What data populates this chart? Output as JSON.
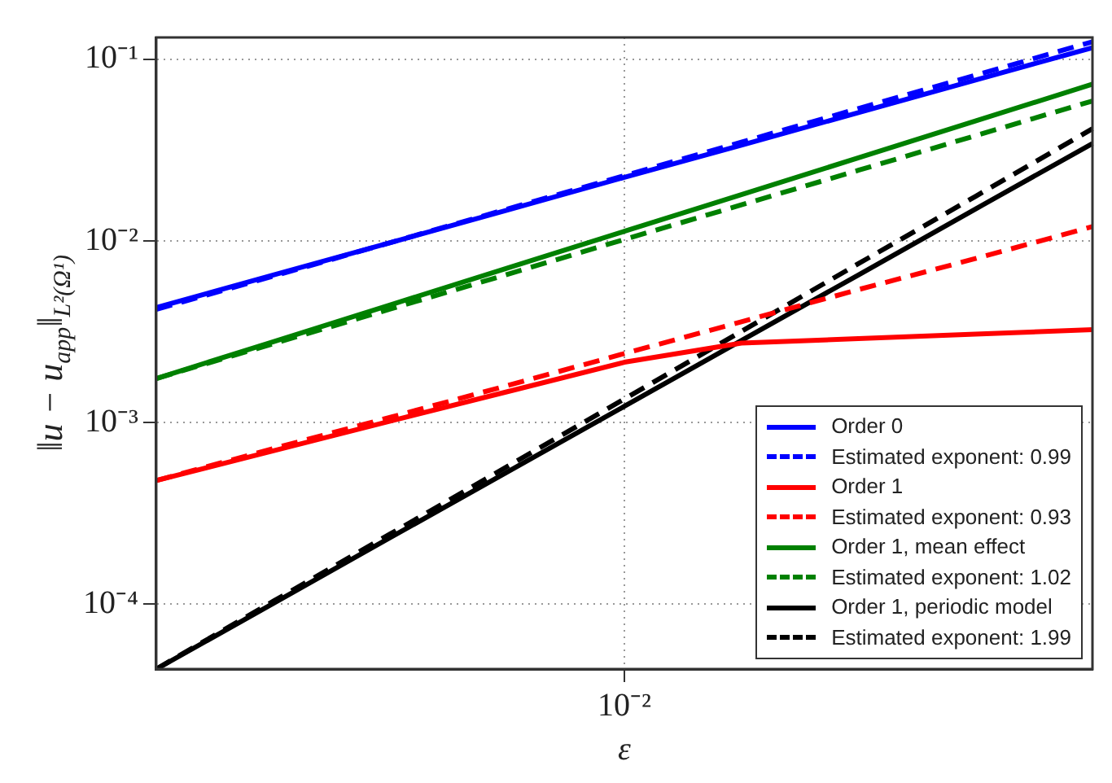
{
  "chart_data": {
    "type": "line",
    "xlabel": "ε",
    "ylabel": "‖u − u$_{app}$‖$_{L²(Ω¹)}$",
    "log": "y",
    "grid": true,
    "legend": "bottom right",
    "marker": "none",
    "categories": [
      null,
      null,
      null,
      null,
      "10⁻²",
      null,
      null,
      null,
      null
    ],
    "ylim": [
      4.4e-05,
      0.132
    ],
    "yticks": [
      {
        "value": 0.0001,
        "label": "10⁻⁴"
      },
      {
        "value": 0.001,
        "label": "10⁻³"
      },
      {
        "value": 0.01,
        "label": "10⁻²"
      },
      {
        "value": 0.1,
        "label": "10⁻¹"
      }
    ],
    "series": [
      {
        "name": "Order 0",
        "color": "#0000ff",
        "line_style": "solid",
        "values": [
          0.0043,
          0.0065,
          0.0098,
          0.0148,
          0.0224,
          0.0337,
          0.0509,
          0.0769,
          0.116
        ]
      },
      {
        "name": "Estimated exponent: 0.99",
        "color": "#0000ff",
        "line_style": "dashed",
        "values": [
          0.0042,
          0.0064,
          0.0098,
          0.015,
          0.0229,
          0.035,
          0.0536,
          0.0818,
          0.125
        ]
      },
      {
        "name": "Order 1",
        "color": "#ff0000",
        "line_style": "solid",
        "values": [
          0.00048,
          0.0007,
          0.00102,
          0.00148,
          0.00215,
          0.00274,
          0.0029,
          0.00307,
          0.00325
        ]
      },
      {
        "name": "Estimated exponent: 0.93",
        "color": "#ff0000",
        "line_style": "dashed",
        "values": [
          0.00048,
          0.00072,
          0.00107,
          0.0016,
          0.0024,
          0.00359,
          0.0054,
          0.008,
          0.012
        ]
      },
      {
        "name": "Order 1, mean effect",
        "color": "#008000",
        "line_style": "solid",
        "values": [
          0.00175,
          0.00279,
          0.00445,
          0.0071,
          0.0113,
          0.018,
          0.0287,
          0.0458,
          0.073
        ]
      },
      {
        "name": "Estimated exponent: 1.02",
        "color": "#008000",
        "line_style": "dashed",
        "values": [
          0.00175,
          0.00272,
          0.00422,
          0.00655,
          0.0102,
          0.0158,
          0.0245,
          0.038,
          0.059
        ]
      },
      {
        "name": "Order 1, periodic model",
        "color": "#000000",
        "line_style": "solid",
        "values": [
          4.4e-05,
          0.000101,
          0.000233,
          0.000535,
          0.00123,
          0.00283,
          0.0065,
          0.015,
          0.0344
        ]
      },
      {
        "name": "Estimated exponent: 1.99",
        "color": "#000000",
        "line_style": "dashed",
        "values": [
          4.4e-05,
          0.000104,
          0.000244,
          0.000574,
          0.00135,
          0.00318,
          0.0075,
          0.0176,
          0.0415
        ]
      }
    ]
  }
}
